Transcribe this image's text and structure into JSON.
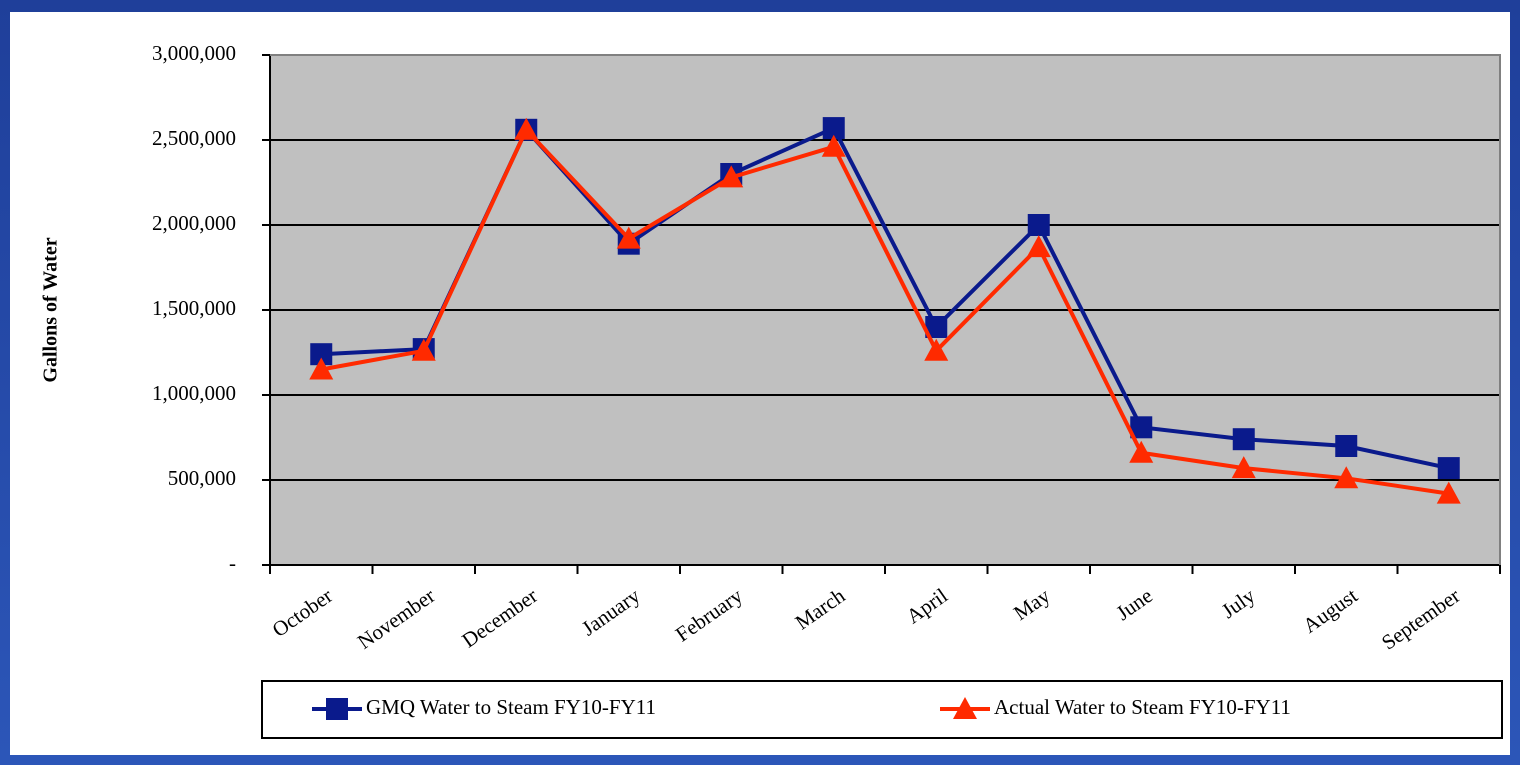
{
  "chart_data": {
    "type": "line",
    "ylabel": "Gallons of Water",
    "categories": [
      "October",
      "November",
      "December",
      "January",
      "February",
      "March",
      "April",
      "May",
      "June",
      "July",
      "August",
      "September"
    ],
    "series": [
      {
        "name": "GMQ Water to Steam FY10-FY11",
        "color": "#0a1a8c",
        "marker": "square",
        "values": [
          1240000,
          1270000,
          2560000,
          1890000,
          2300000,
          2570000,
          1400000,
          2000000,
          810000,
          740000,
          700000,
          570000
        ]
      },
      {
        "name": "Actual Water to Steam FY10-FY11",
        "color": "#ff2a00",
        "marker": "triangle",
        "values": [
          1150000,
          1260000,
          2560000,
          1920000,
          2280000,
          2460000,
          1260000,
          1870000,
          660000,
          570000,
          510000,
          420000
        ]
      }
    ],
    "ylim": [
      0,
      3000000
    ],
    "yticks": [
      {
        "value": 0,
        "label": "-"
      },
      {
        "value": 500000,
        "label": "500,000"
      },
      {
        "value": 1000000,
        "label": "1,000,000"
      },
      {
        "value": 1500000,
        "label": "1,500,000"
      },
      {
        "value": 2000000,
        "label": "2,000,000"
      },
      {
        "value": 2500000,
        "label": "2,500,000"
      },
      {
        "value": 3000000,
        "label": "3,000,000"
      }
    ],
    "grid": true,
    "legend": "bottom",
    "plot_background": "#c0c0c0"
  }
}
